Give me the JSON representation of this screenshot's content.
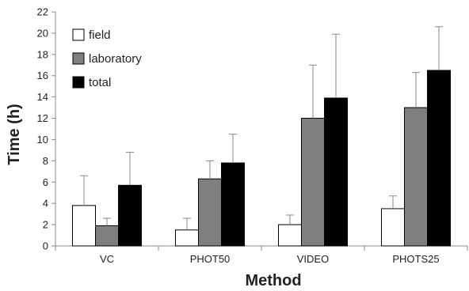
{
  "chart_data": {
    "type": "bar",
    "categories": [
      "VC",
      "PHOT50",
      "VIDEO",
      "PHOTS25"
    ],
    "series": [
      {
        "name": "field",
        "values": [
          3.8,
          1.5,
          2.0,
          3.5
        ],
        "errors": [
          2.8,
          1.1,
          0.9,
          1.2
        ],
        "color": "#ffffff"
      },
      {
        "name": "laboratory",
        "values": [
          1.9,
          6.3,
          12.0,
          13.0
        ],
        "errors": [
          0.7,
          1.7,
          5.0,
          3.3
        ],
        "color": "#7f7f7f"
      },
      {
        "name": "total",
        "values": [
          5.7,
          7.8,
          13.9,
          16.5
        ],
        "errors": [
          3.1,
          2.7,
          6.0,
          4.1
        ],
        "color": "#000000"
      }
    ],
    "title": "",
    "xlabel": "Method",
    "ylabel": "Time (h)",
    "ylim": [
      0,
      22
    ],
    "yticks": [
      0,
      2,
      4,
      6,
      8,
      10,
      12,
      14,
      16,
      18,
      20,
      22
    ],
    "grid": false,
    "legend_position": "top-left"
  }
}
